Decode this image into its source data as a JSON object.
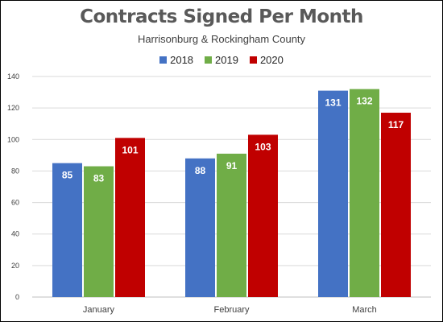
{
  "chart_data": {
    "type": "bar",
    "title": "Contracts Signed Per Month",
    "subtitle": "Harrisonburg & Rockingham County",
    "categories": [
      "January",
      "February",
      "March"
    ],
    "series": [
      {
        "name": "2018",
        "color": "#4472c4",
        "values": [
          85,
          88,
          131
        ]
      },
      {
        "name": "2019",
        "color": "#70ad47",
        "values": [
          83,
          91,
          132
        ]
      },
      {
        "name": "2020",
        "color": "#c00000",
        "values": [
          101,
          103,
          117
        ]
      }
    ],
    "ylim": [
      0,
      140
    ],
    "yticks": [
      0,
      20,
      40,
      60,
      80,
      100,
      120,
      140
    ],
    "grid": true,
    "legend_position": "top",
    "data_labels": true
  }
}
